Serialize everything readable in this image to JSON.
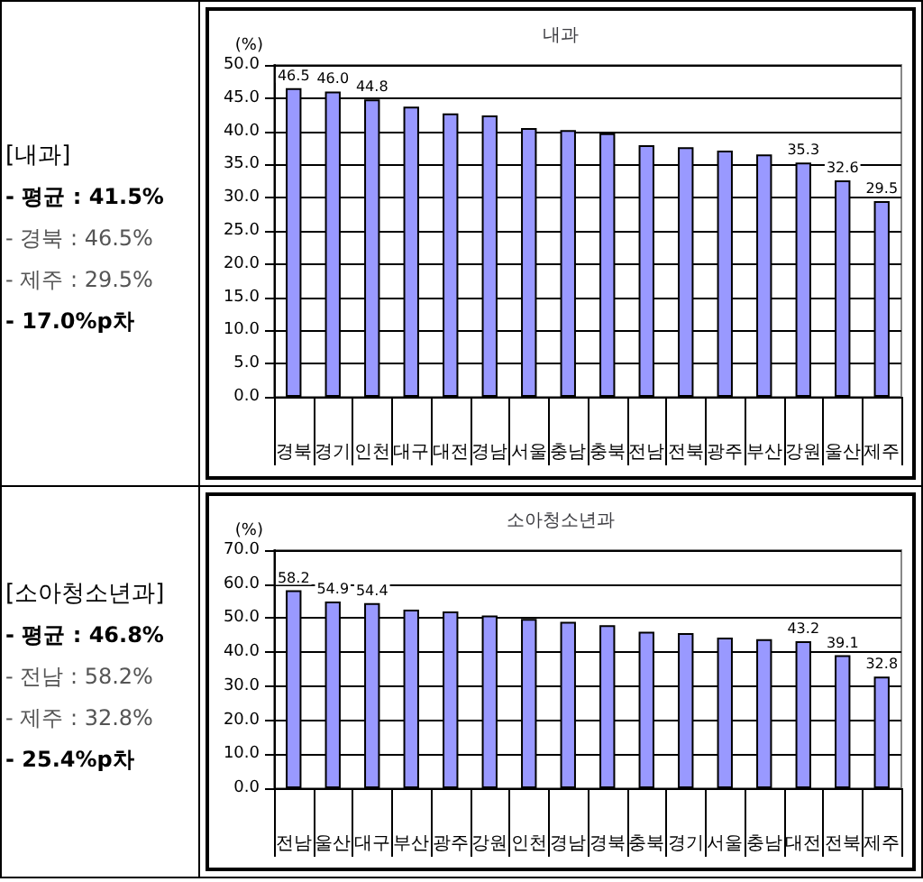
{
  "chart_data": [
    {
      "type": "other",
      "title": "[내과]",
      "annotations": [
        "- 평균 : 41.5%",
        "- 경북 : 46.5%",
        "- 제주 : 29.5%",
        "- 17.0%p차"
      ]
    },
    {
      "type": "bar",
      "title": "내과",
      "ylabel": "(%)",
      "categories": [
        "경북",
        "경기",
        "인천",
        "대구",
        "대전",
        "경남",
        "서울",
        "충남",
        "충북",
        "전남",
        "전북",
        "광주",
        "부산",
        "강원",
        "울산",
        "제주"
      ],
      "series": [
        {
          "color": "#9999ff",
          "values": [
            46.5,
            46.0,
            44.8,
            43.7,
            42.7,
            42.4,
            40.5,
            40.2,
            39.7,
            37.9,
            37.6,
            37.1,
            36.5,
            35.3,
            32.6,
            29.5
          ],
          "value_labels": [
            "46.5",
            "46.0",
            "44.8",
            null,
            null,
            null,
            null,
            null,
            null,
            null,
            null,
            null,
            null,
            "35.3",
            "32.6",
            "29.5"
          ]
        }
      ],
      "ylim": [
        0,
        50
      ],
      "yticks": [
        {
          "value": 0,
          "label": "0.0"
        },
        {
          "value": 5,
          "label": "5.0"
        },
        {
          "value": 10,
          "label": "10.0"
        },
        {
          "value": 15,
          "label": "15.0"
        },
        {
          "value": 20,
          "label": "20.0"
        },
        {
          "value": 25,
          "label": "25.0"
        },
        {
          "value": 30,
          "label": "30.0"
        },
        {
          "value": 35,
          "label": "35.0"
        },
        {
          "value": 40,
          "label": "40.0"
        },
        {
          "value": 45,
          "label": "45.0"
        },
        {
          "value": 50,
          "label": "50.0"
        }
      ],
      "grid": "y"
    },
    {
      "type": "other",
      "title": "[소아청소년과]",
      "annotations": [
        "- 평균 : 46.8%",
        "- 전남 : 58.2%",
        "- 제주 : 32.8%",
        "- 25.4%p차"
      ]
    },
    {
      "type": "bar",
      "title": "소아청소년과",
      "ylabel": "(%)",
      "categories": [
        "전남",
        "울산",
        "대구",
        "부산",
        "광주",
        "강원",
        "인천",
        "경남",
        "경북",
        "충북",
        "경기",
        "서울",
        "충남",
        "대전",
        "전북",
        "제주"
      ],
      "series": [
        {
          "color": "#9999ff",
          "values": [
            58.2,
            54.9,
            54.4,
            52.5,
            52.0,
            50.8,
            49.8,
            48.9,
            47.9,
            46.0,
            45.6,
            44.3,
            43.8,
            43.2,
            39.1,
            32.8
          ],
          "value_labels": [
            "58.2",
            "54.9",
            "54.4",
            null,
            null,
            null,
            null,
            null,
            null,
            null,
            null,
            null,
            null,
            "43.2",
            "39.1",
            "32.8"
          ]
        }
      ],
      "ylim": [
        0,
        70
      ],
      "yticks": [
        {
          "value": 0,
          "label": "0.0"
        },
        {
          "value": 10,
          "label": "10.0"
        },
        {
          "value": 20,
          "label": "20.0"
        },
        {
          "value": 30,
          "label": "30.0"
        },
        {
          "value": 40,
          "label": "40.0"
        },
        {
          "value": 50,
          "label": "50.0"
        },
        {
          "value": 60,
          "label": "60.0"
        },
        {
          "value": 70,
          "label": "70.0"
        }
      ],
      "grid": "y"
    }
  ]
}
